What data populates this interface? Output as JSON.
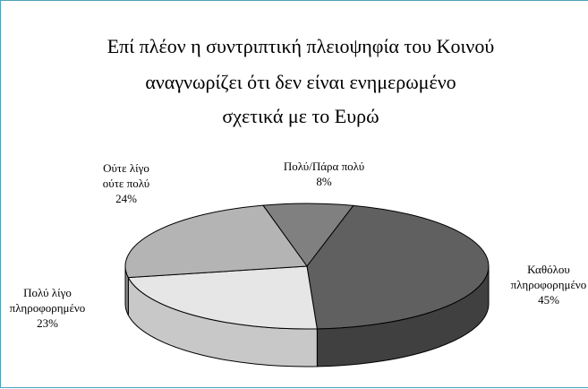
{
  "chart_data": {
    "type": "pie",
    "style": "3d",
    "title_lines": [
      "Επί πλέον η συντριπτική πλειοψηφία του Κοινού",
      "αναγνωρίζει ότι δεν είναι ενημερωμένο",
      "σχετικά με το Ευρώ"
    ],
    "slices": [
      {
        "label_lines": [
          "Πολύ/Πάρα πολύ",
          "8%"
        ],
        "value": 8,
        "color": "#808080",
        "side_color": "#5a5a5a"
      },
      {
        "label_lines": [
          "Καθόλου",
          "πληροφορημένο",
          "45%"
        ],
        "value": 45,
        "color": "#606060",
        "side_color": "#404040"
      },
      {
        "label_lines": [
          "Πολύ λίγο",
          "πληροφορημένο",
          "23%"
        ],
        "value": 23,
        "color": "#e6e6e6",
        "side_color": "#c8c8c8"
      },
      {
        "label_lines": [
          "Ούτε λίγο",
          "ούτε πολύ",
          "24%"
        ],
        "value": 24,
        "color": "#b4b4b4",
        "side_color": "#8c8c8c"
      }
    ],
    "legend": "none",
    "border_color": "#4aa3b8"
  }
}
